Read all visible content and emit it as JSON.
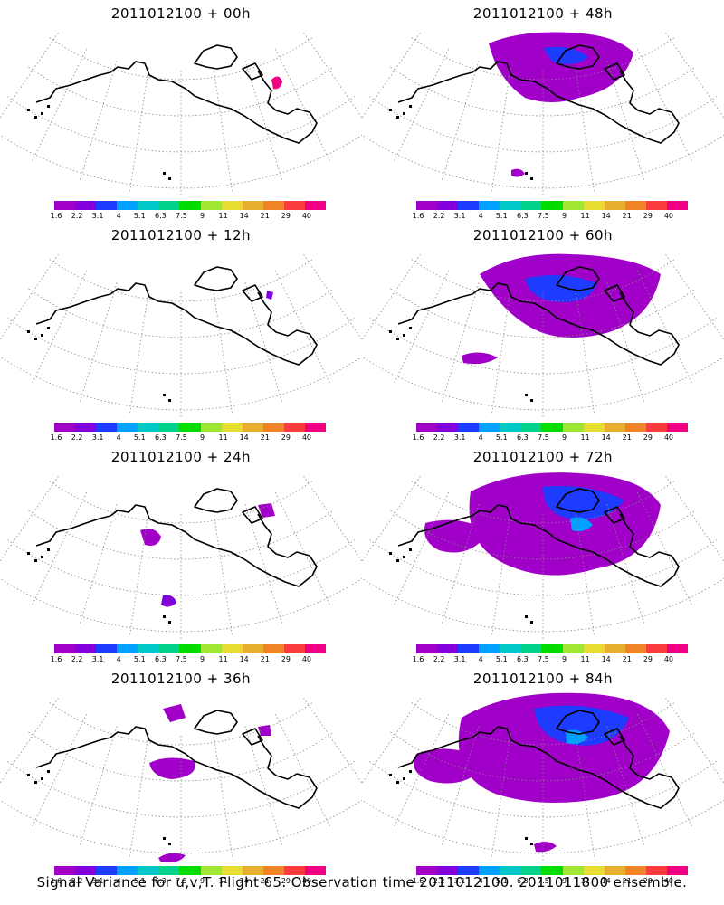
{
  "colorbar": {
    "colors": [
      "#a000c8",
      "#8200dc",
      "#1e3cff",
      "#00a0ff",
      "#00c8c8",
      "#00d28c",
      "#00dc00",
      "#a0e632",
      "#e6dc32",
      "#e6af2d",
      "#f08228",
      "#fa3c3c",
      "#f00082"
    ],
    "ticks": [
      "1.6",
      "2.2",
      "3.1",
      "4",
      "5.1",
      "6.3",
      "7.5",
      "9",
      "11",
      "14",
      "21",
      "29",
      "40"
    ]
  },
  "panels": [
    {
      "title": "2011012100  +  00h",
      "level": 0
    },
    {
      "title": "2011012100  +  48h",
      "level": 4
    },
    {
      "title": "2011012100  +  12h",
      "level": 1
    },
    {
      "title": "2011012100  +  60h",
      "level": 5
    },
    {
      "title": "2011012100  +  24h",
      "level": 2
    },
    {
      "title": "2011012100  +  72h",
      "level": 6
    },
    {
      "title": "2011012100  +  36h",
      "level": 3
    },
    {
      "title": "2011012100  +  84h",
      "level": 7
    }
  ],
  "footer": "Signal Variance for u,v,T. Flight 65. Observation time 2011012100. 2011011800 ensemble."
}
